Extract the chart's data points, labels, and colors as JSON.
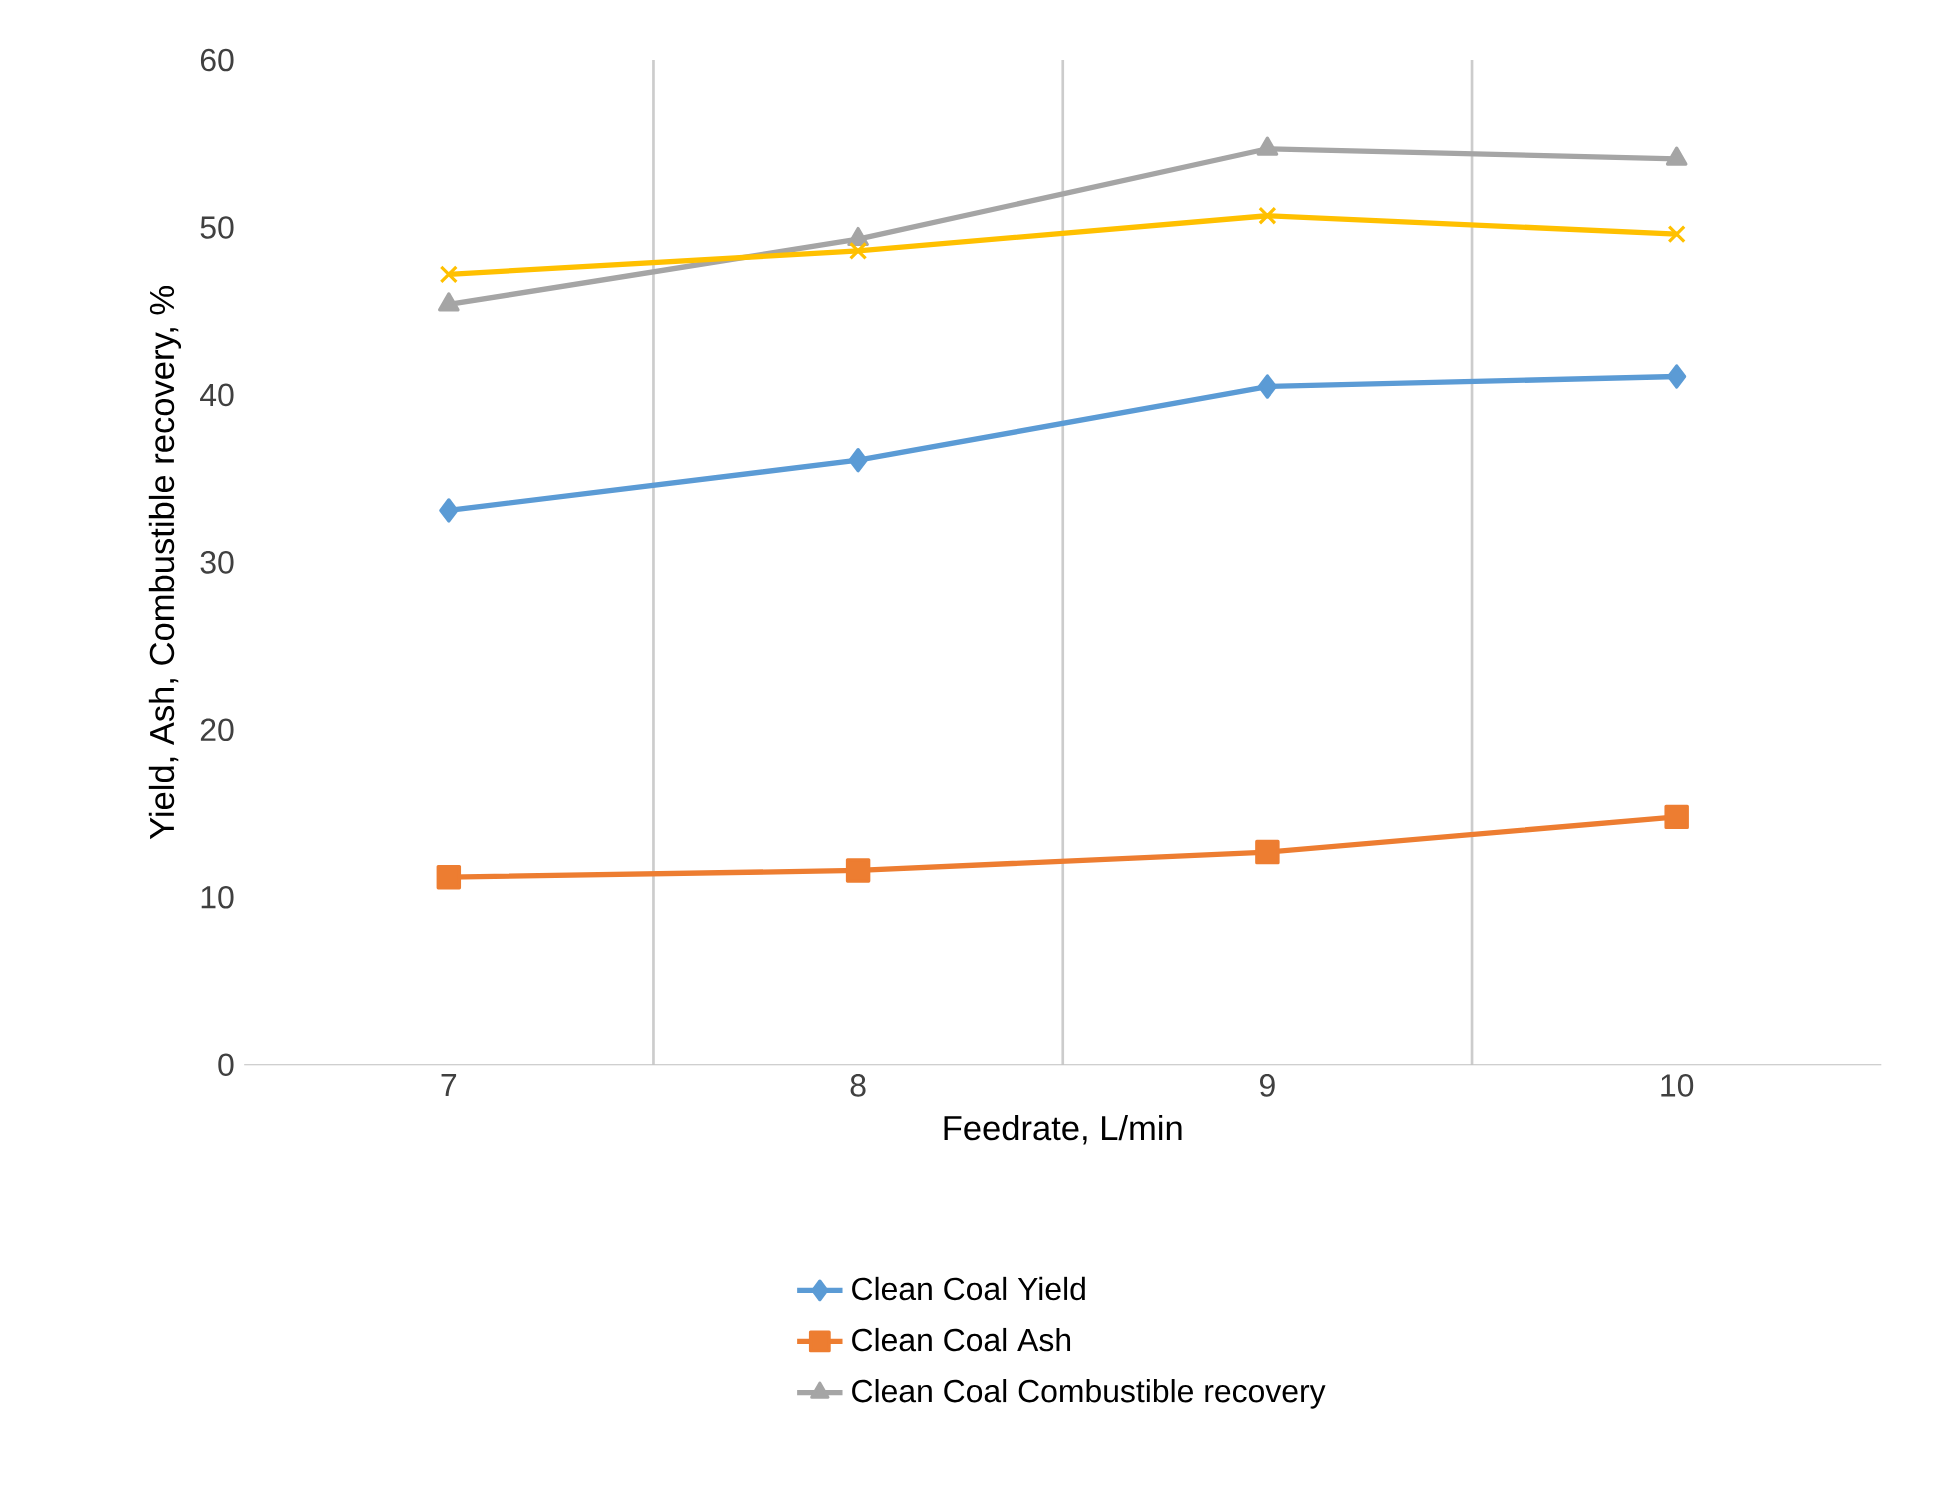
{
  "chart_data": {
    "type": "line",
    "xlabel": "Feedrate, L/min",
    "ylabel": "Yield, Ash,  Combustible recovery, %",
    "categories": [
      "7",
      "8",
      "9",
      "10"
    ],
    "series": [
      {
        "name": "Clean Coal Yield",
        "color": "#5b9bd5",
        "marker": "diamond",
        "values": [
          33.1,
          36.1,
          40.5,
          41.1
        ]
      },
      {
        "name": "Clean Coal Ash",
        "color": "#ed7d31",
        "marker": "square",
        "values": [
          11.2,
          11.6,
          12.7,
          14.8
        ]
      },
      {
        "name": "Clean Coal Combustible recovery",
        "color": "#a5a5a5",
        "marker": "triangle",
        "values": [
          45.4,
          49.3,
          54.7,
          54.1
        ]
      },
      {
        "color": "#ffc000",
        "marker": "cross",
        "values": [
          47.2,
          48.6,
          50.7,
          49.6
        ]
      }
    ],
    "ylim": [
      0,
      60
    ],
    "yticks": [
      0,
      10,
      20,
      30,
      40,
      50,
      60
    ],
    "grid": "x",
    "legend": "bottom"
  }
}
